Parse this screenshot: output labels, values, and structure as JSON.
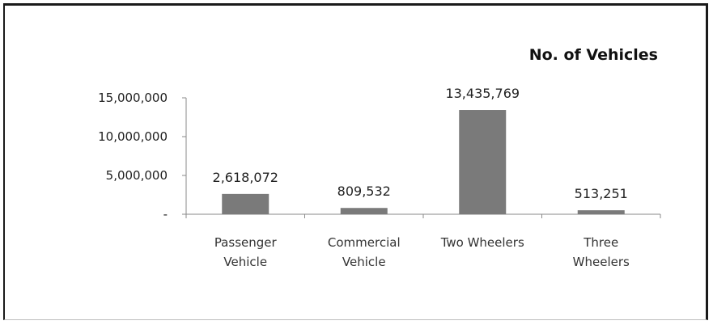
{
  "chart_data": {
    "type": "bar",
    "title": "No. of Vehicles",
    "categories": [
      [
        "Passenger",
        "Vehicle"
      ],
      [
        "Commercial",
        "Vehicle"
      ],
      [
        "Two Wheelers"
      ],
      [
        "Three",
        "Wheelers"
      ]
    ],
    "values": [
      2618072,
      809532,
      13435769,
      513251
    ],
    "value_labels": [
      "2,618,072",
      "809,532",
      "13,435,769",
      "513,251"
    ],
    "yticks": [
      0,
      5000000,
      10000000,
      15000000
    ],
    "ytick_labels": [
      "-",
      "5,000,000",
      "10,000,000",
      "15,000,000"
    ],
    "ylim": [
      0,
      15000000
    ],
    "bar_color": "#7a7a7a",
    "grid": false,
    "legend": "none"
  }
}
